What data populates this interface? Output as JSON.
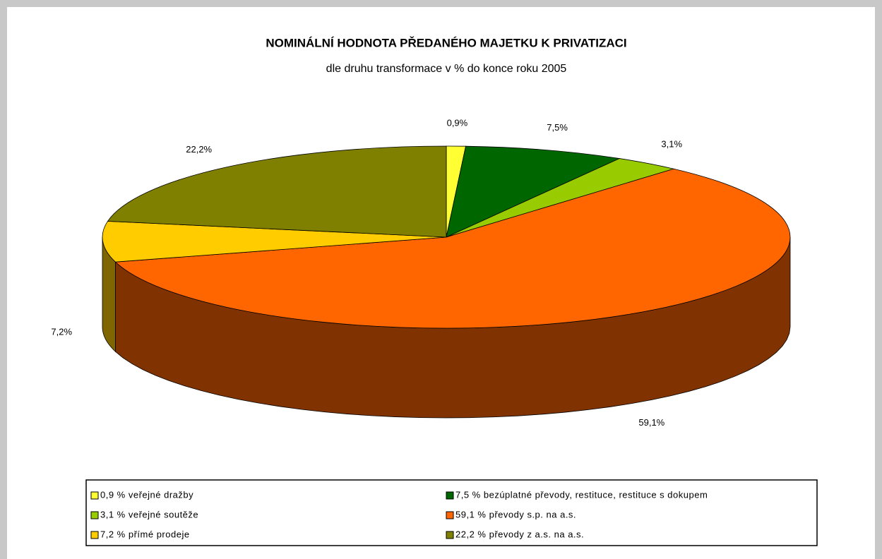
{
  "chart_data": {
    "type": "pie3d",
    "title": "NOMINÁLNÍ HODNOTA PŘEDANÉHO MAJETKU K PRIVATIZACI",
    "subtitle": "dle druhu transformace v % do konce roku 2005",
    "categories": [
      "0,9 % veřejné dražby",
      "7,5 % bezúplatné převody, restituce, restituce s dokupem",
      "3,1 % veřejné soutěže",
      "59,1 % převody s.p. na a.s.",
      "7,2 % přímé prodeje",
      "22,2 % převody z a.s. na a.s."
    ],
    "values": [
      0.9,
      7.5,
      3.1,
      59.1,
      7.2,
      22.2
    ],
    "value_labels": [
      "0,9%",
      "7,5%",
      "3,1%",
      "59,1%",
      "7,2%",
      "22,2%"
    ],
    "colors": [
      "#ffff33",
      "#006600",
      "#99cc00",
      "#ff6600",
      "#ffcc00",
      "#808000"
    ],
    "legend": "bottom"
  }
}
